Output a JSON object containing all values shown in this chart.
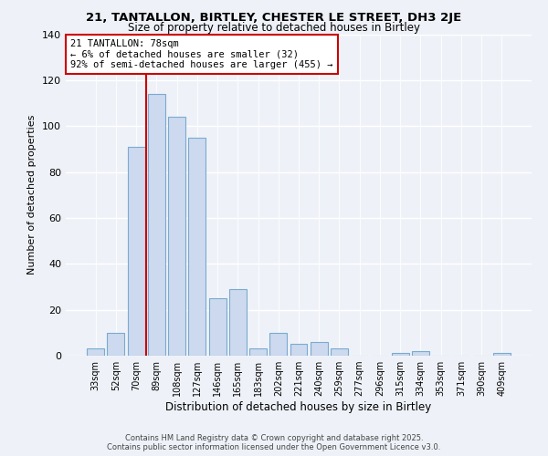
{
  "title": "21, TANTALLON, BIRTLEY, CHESTER LE STREET, DH3 2JE",
  "subtitle": "Size of property relative to detached houses in Birtley",
  "xlabel": "Distribution of detached houses by size in Birtley",
  "ylabel": "Number of detached properties",
  "bar_labels": [
    "33sqm",
    "52sqm",
    "70sqm",
    "89sqm",
    "108sqm",
    "127sqm",
    "146sqm",
    "165sqm",
    "183sqm",
    "202sqm",
    "221sqm",
    "240sqm",
    "259sqm",
    "277sqm",
    "296sqm",
    "315sqm",
    "334sqm",
    "353sqm",
    "371sqm",
    "390sqm",
    "409sqm"
  ],
  "bar_values": [
    3,
    10,
    91,
    114,
    104,
    95,
    25,
    29,
    3,
    10,
    5,
    6,
    3,
    0,
    0,
    1,
    2,
    0,
    0,
    0,
    1
  ],
  "bar_color": "#ccd9ee",
  "bar_edge_color": "#7aaad0",
  "vline_color": "#cc0000",
  "annotation_text": "21 TANTALLON: 78sqm\n← 6% of detached houses are smaller (32)\n92% of semi-detached houses are larger (455) →",
  "annotation_box_color": "#ffffff",
  "annotation_box_edge": "#cc0000",
  "ylim": [
    0,
    140
  ],
  "yticks": [
    0,
    20,
    40,
    60,
    80,
    100,
    120,
    140
  ],
  "footer_line1": "Contains HM Land Registry data © Crown copyright and database right 2025.",
  "footer_line2": "Contains public sector information licensed under the Open Government Licence v3.0.",
  "background_color": "#eef2f8"
}
